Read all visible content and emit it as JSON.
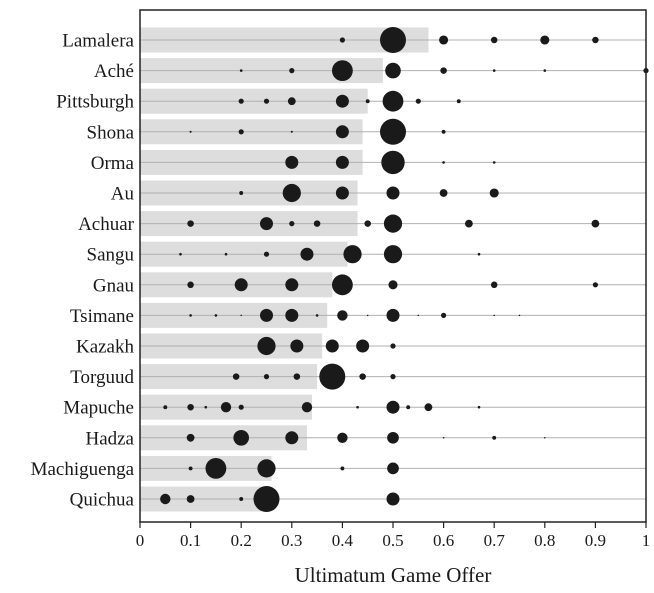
{
  "chart_data": {
    "type": "scatter",
    "title": "",
    "xlabel": "Ultimatum Game Offer",
    "ylabel": "",
    "xlim": [
      0,
      1
    ],
    "xticks": [
      "0",
      "0.1",
      "0.2",
      "0.3",
      "0.4",
      "0.5",
      "0.6",
      "0.7",
      "0.8",
      "0.9",
      "1"
    ],
    "grid": "horizontal row lines",
    "legend": "none",
    "colors": {
      "bar": "#dddddd",
      "dot": "#1a1a1a",
      "row_line": "#b0b0b0",
      "frame": "#222222"
    },
    "societies": [
      {
        "name": "Lamalera",
        "mean": 0.57,
        "points": [
          [
            0.4,
            2
          ],
          [
            0.5,
            10
          ],
          [
            0.6,
            3.5
          ],
          [
            0.7,
            2.5
          ],
          [
            0.8,
            3.5
          ],
          [
            0.9,
            2.5
          ]
        ]
      },
      {
        "name": "Aché",
        "mean": 0.48,
        "points": [
          [
            0.2,
            1
          ],
          [
            0.3,
            2
          ],
          [
            0.4,
            8
          ],
          [
            0.5,
            6
          ],
          [
            0.6,
            2.5
          ],
          [
            0.7,
            1
          ],
          [
            0.8,
            1
          ],
          [
            1.0,
            2
          ]
        ]
      },
      {
        "name": "Pittsburgh",
        "mean": 0.45,
        "points": [
          [
            0.2,
            2
          ],
          [
            0.25,
            2
          ],
          [
            0.3,
            3
          ],
          [
            0.4,
            5
          ],
          [
            0.45,
            1.5
          ],
          [
            0.5,
            8
          ],
          [
            0.55,
            2
          ],
          [
            0.63,
            1.5
          ]
        ]
      },
      {
        "name": "Shona",
        "mean": 0.44,
        "points": [
          [
            0.1,
            0.8
          ],
          [
            0.2,
            2
          ],
          [
            0.3,
            0.8
          ],
          [
            0.4,
            5
          ],
          [
            0.5,
            10
          ],
          [
            0.6,
            1.5
          ]
        ]
      },
      {
        "name": "Orma",
        "mean": 0.44,
        "points": [
          [
            0.3,
            5
          ],
          [
            0.4,
            5
          ],
          [
            0.5,
            9
          ],
          [
            0.6,
            1
          ],
          [
            0.7,
            1
          ]
        ]
      },
      {
        "name": "Au",
        "mean": 0.43,
        "points": [
          [
            0.2,
            1.5
          ],
          [
            0.3,
            7
          ],
          [
            0.4,
            5
          ],
          [
            0.5,
            5
          ],
          [
            0.6,
            3
          ],
          [
            0.7,
            3.5
          ]
        ]
      },
      {
        "name": "Achuar",
        "mean": 0.43,
        "points": [
          [
            0.1,
            2.5
          ],
          [
            0.25,
            5
          ],
          [
            0.3,
            2
          ],
          [
            0.35,
            2.5
          ],
          [
            0.45,
            2.5
          ],
          [
            0.5,
            7
          ],
          [
            0.65,
            3
          ],
          [
            0.9,
            3
          ]
        ]
      },
      {
        "name": "Sangu",
        "mean": 0.41,
        "points": [
          [
            0.08,
            1
          ],
          [
            0.17,
            1
          ],
          [
            0.25,
            2
          ],
          [
            0.33,
            5
          ],
          [
            0.42,
            7
          ],
          [
            0.5,
            7
          ],
          [
            0.67,
            1
          ]
        ]
      },
      {
        "name": "Gnau",
        "mean": 0.38,
        "points": [
          [
            0.1,
            2.5
          ],
          [
            0.2,
            5
          ],
          [
            0.3,
            5
          ],
          [
            0.4,
            8
          ],
          [
            0.5,
            3.5
          ],
          [
            0.7,
            2.5
          ],
          [
            0.9,
            2
          ]
        ]
      },
      {
        "name": "Tsimane",
        "mean": 0.37,
        "points": [
          [
            0.1,
            1
          ],
          [
            0.15,
            1
          ],
          [
            0.2,
            0.6
          ],
          [
            0.25,
            5
          ],
          [
            0.3,
            5
          ],
          [
            0.35,
            1
          ],
          [
            0.4,
            4
          ],
          [
            0.45,
            0.6
          ],
          [
            0.5,
            5
          ],
          [
            0.55,
            0.6
          ],
          [
            0.6,
            2
          ],
          [
            0.7,
            0.6
          ],
          [
            0.75,
            0.6
          ]
        ]
      },
      {
        "name": "Kazakh",
        "mean": 0.36,
        "points": [
          [
            0.25,
            7
          ],
          [
            0.31,
            5
          ],
          [
            0.38,
            5
          ],
          [
            0.44,
            5
          ],
          [
            0.5,
            2
          ]
        ]
      },
      {
        "name": "Torguud",
        "mean": 0.35,
        "points": [
          [
            0.19,
            2.5
          ],
          [
            0.25,
            2
          ],
          [
            0.31,
            2.5
          ],
          [
            0.38,
            10
          ],
          [
            0.44,
            2.5
          ],
          [
            0.5,
            2
          ]
        ]
      },
      {
        "name": "Mapuche",
        "mean": 0.34,
        "points": [
          [
            0.05,
            1.5
          ],
          [
            0.1,
            2.5
          ],
          [
            0.13,
            1
          ],
          [
            0.17,
            4
          ],
          [
            0.2,
            2
          ],
          [
            0.33,
            4
          ],
          [
            0.43,
            1
          ],
          [
            0.5,
            5
          ],
          [
            0.53,
            1.5
          ],
          [
            0.57,
            3
          ],
          [
            0.67,
            1
          ]
        ]
      },
      {
        "name": "Hadza",
        "mean": 0.33,
        "points": [
          [
            0.1,
            3
          ],
          [
            0.2,
            6
          ],
          [
            0.3,
            5
          ],
          [
            0.4,
            4
          ],
          [
            0.5,
            4.5
          ],
          [
            0.6,
            0.6
          ],
          [
            0.7,
            1.5
          ],
          [
            0.8,
            0.6
          ]
        ]
      },
      {
        "name": "Machiguenga",
        "mean": 0.26,
        "points": [
          [
            0.1,
            1.5
          ],
          [
            0.15,
            8
          ],
          [
            0.25,
            7
          ],
          [
            0.4,
            1.5
          ],
          [
            0.5,
            4.5
          ]
        ]
      },
      {
        "name": "Quichua",
        "mean": 0.25,
        "points": [
          [
            0.05,
            4
          ],
          [
            0.1,
            3
          ],
          [
            0.2,
            1.5
          ],
          [
            0.25,
            10
          ],
          [
            0.5,
            5
          ]
        ]
      }
    ]
  }
}
